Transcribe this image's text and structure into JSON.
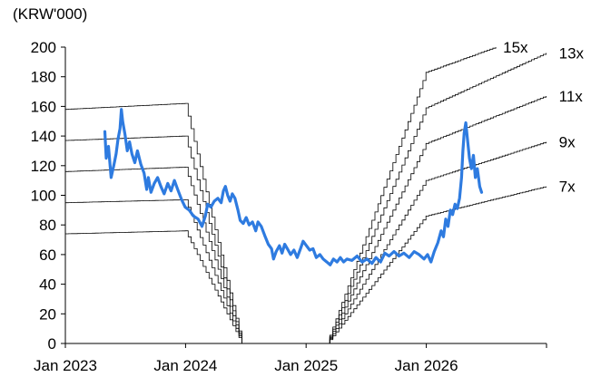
{
  "chart_data": {
    "type": "line",
    "title": "",
    "unit_label": "(KRW'000)",
    "xlabel": "",
    "ylabel": "",
    "ylim": [
      0,
      200
    ],
    "yticks": [
      0,
      20,
      40,
      60,
      80,
      100,
      120,
      140,
      160,
      180,
      200
    ],
    "xlim": [
      "2023-01-01",
      "2027-01-01"
    ],
    "xtick_labels": [
      "Jan 2023",
      "Jan 2024",
      "Jan 2025",
      "Jan 2026"
    ],
    "xtick_dates": [
      "2023-01-01",
      "2024-01-01",
      "2025-01-01",
      "2026-01-01",
      "2027-01-01"
    ],
    "grid": false,
    "price_color": "#2e7be0",
    "band_color": "#000000",
    "series": [
      {
        "kind": "price",
        "points": [
          [
            "2023-05-01",
            143
          ],
          [
            "2023-05-05",
            125
          ],
          [
            "2023-05-12",
            133
          ],
          [
            "2023-05-20",
            112
          ],
          [
            "2023-05-28",
            120
          ],
          [
            "2023-06-04",
            128
          ],
          [
            "2023-06-10",
            138
          ],
          [
            "2023-06-16",
            145
          ],
          [
            "2023-06-20",
            158
          ],
          [
            "2023-06-24",
            150
          ],
          [
            "2023-07-01",
            141
          ],
          [
            "2023-07-08",
            130
          ],
          [
            "2023-07-15",
            136
          ],
          [
            "2023-07-22",
            128
          ],
          [
            "2023-07-31",
            122
          ],
          [
            "2023-08-08",
            130
          ],
          [
            "2023-08-18",
            121
          ],
          [
            "2023-08-28",
            115
          ],
          [
            "2023-09-05",
            104
          ],
          [
            "2023-09-10",
            112
          ],
          [
            "2023-09-18",
            102
          ],
          [
            "2023-09-28",
            108
          ],
          [
            "2023-10-08",
            112
          ],
          [
            "2023-10-18",
            106
          ],
          [
            "2023-10-28",
            101
          ],
          [
            "2023-11-08",
            108
          ],
          [
            "2023-11-18",
            103
          ],
          [
            "2023-11-28",
            110
          ],
          [
            "2023-12-08",
            104
          ],
          [
            "2023-12-20",
            97
          ],
          [
            "2023-12-31",
            92
          ],
          [
            "2024-01-12",
            90
          ],
          [
            "2024-01-25",
            86
          ],
          [
            "2024-02-08",
            84
          ],
          [
            "2024-02-20",
            79
          ],
          [
            "2024-03-01",
            86
          ],
          [
            "2024-03-08",
            94
          ],
          [
            "2024-03-18",
            92
          ],
          [
            "2024-03-28",
            96
          ],
          [
            "2024-04-08",
            98
          ],
          [
            "2024-04-18",
            95
          ],
          [
            "2024-04-25",
            103
          ],
          [
            "2024-05-01",
            106
          ],
          [
            "2024-05-08",
            100
          ],
          [
            "2024-05-15",
            96
          ],
          [
            "2024-05-22",
            101
          ],
          [
            "2024-05-30",
            98
          ],
          [
            "2024-06-08",
            90
          ],
          [
            "2024-06-15",
            83
          ],
          [
            "2024-06-24",
            81
          ],
          [
            "2024-07-03",
            85
          ],
          [
            "2024-07-12",
            80
          ],
          [
            "2024-07-22",
            82
          ],
          [
            "2024-08-01",
            76
          ],
          [
            "2024-08-08",
            82
          ],
          [
            "2024-08-18",
            79
          ],
          [
            "2024-08-28",
            73
          ],
          [
            "2024-09-08",
            67
          ],
          [
            "2024-09-18",
            64
          ],
          [
            "2024-09-24",
            57
          ],
          [
            "2024-10-02",
            62
          ],
          [
            "2024-10-12",
            66
          ],
          [
            "2024-10-20",
            61
          ],
          [
            "2024-10-28",
            67
          ],
          [
            "2024-11-05",
            64
          ],
          [
            "2024-11-15",
            60
          ],
          [
            "2024-11-25",
            63
          ],
          [
            "2024-12-05",
            58
          ],
          [
            "2024-12-15",
            64
          ],
          [
            "2024-12-23",
            69
          ],
          [
            "2025-01-02",
            66
          ],
          [
            "2025-01-12",
            63
          ],
          [
            "2025-01-22",
            64
          ],
          [
            "2025-02-01",
            58
          ],
          [
            "2025-02-12",
            60
          ],
          [
            "2025-02-22",
            57
          ],
          [
            "2025-03-05",
            55
          ],
          [
            "2025-03-15",
            53
          ],
          [
            "2025-03-25",
            57
          ],
          [
            "2025-04-05",
            55
          ],
          [
            "2025-04-15",
            58
          ],
          [
            "2025-04-25",
            55
          ],
          [
            "2025-05-05",
            57
          ],
          [
            "2025-05-20",
            56
          ],
          [
            "2025-06-05",
            59
          ],
          [
            "2025-06-20",
            55
          ],
          [
            "2025-07-05",
            57
          ],
          [
            "2025-07-20",
            54
          ],
          [
            "2025-08-01",
            58
          ],
          [
            "2025-08-15",
            55
          ],
          [
            "2025-08-28",
            61
          ],
          [
            "2025-09-10",
            59
          ],
          [
            "2025-09-25",
            62
          ],
          [
            "2025-10-10",
            59
          ],
          [
            "2025-10-25",
            61
          ],
          [
            "2025-11-10",
            58
          ],
          [
            "2025-11-25",
            62
          ],
          [
            "2025-12-10",
            60
          ],
          [
            "2025-12-25",
            57
          ],
          [
            "2026-01-05",
            60
          ],
          [
            "2026-01-15",
            55
          ],
          [
            "2026-01-25",
            62
          ],
          [
            "2026-02-05",
            68
          ],
          [
            "2026-02-15",
            76
          ],
          [
            "2026-02-22",
            72
          ],
          [
            "2026-03-01",
            84
          ],
          [
            "2026-03-08",
            79
          ],
          [
            "2026-03-15",
            90
          ],
          [
            "2026-03-22",
            87
          ],
          [
            "2026-03-29",
            94
          ],
          [
            "2026-04-05",
            91
          ],
          [
            "2026-04-12",
            98
          ],
          [
            "2026-04-18",
            112
          ],
          [
            "2026-04-22",
            130
          ],
          [
            "2026-04-26",
            142
          ],
          [
            "2026-05-01",
            149
          ],
          [
            "2026-05-06",
            138
          ],
          [
            "2026-05-12",
            125
          ],
          [
            "2026-05-18",
            118
          ],
          [
            "2026-05-24",
            127
          ],
          [
            "2026-05-30",
            112
          ],
          [
            "2026-06-05",
            118
          ],
          [
            "2026-06-12",
            106
          ],
          [
            "2026-06-18",
            102
          ]
        ]
      },
      {
        "name": "15x",
        "points": [
          [
            "2023-01-01",
            158
          ],
          [
            "2023-12-31",
            162
          ],
          [
            "2024-06-20",
            0
          ],
          [
            "2025-03-05",
            0
          ],
          [
            "2025-12-31",
            183
          ],
          [
            "2026-07-31",
            200
          ]
        ]
      },
      {
        "name": "13x",
        "points": [
          [
            "2023-01-01",
            137
          ],
          [
            "2023-12-31",
            140
          ],
          [
            "2024-06-20",
            0
          ],
          [
            "2025-03-05",
            0
          ],
          [
            "2025-12-31",
            159
          ],
          [
            "2026-12-31",
            196
          ]
        ]
      },
      {
        "name": "11x",
        "points": [
          [
            "2023-01-01",
            116
          ],
          [
            "2023-12-31",
            119
          ],
          [
            "2024-06-20",
            0
          ],
          [
            "2025-03-05",
            0
          ],
          [
            "2025-12-31",
            135
          ],
          [
            "2026-12-31",
            167
          ]
        ]
      },
      {
        "name": "9x",
        "points": [
          [
            "2023-01-01",
            95
          ],
          [
            "2023-12-31",
            97
          ],
          [
            "2024-06-20",
            0
          ],
          [
            "2025-03-05",
            0
          ],
          [
            "2025-12-31",
            110
          ],
          [
            "2026-12-31",
            136
          ]
        ]
      },
      {
        "name": "7x",
        "points": [
          [
            "2023-01-01",
            74
          ],
          [
            "2023-12-31",
            76
          ],
          [
            "2024-06-20",
            0
          ],
          [
            "2025-03-05",
            0
          ],
          [
            "2025-12-31",
            86
          ],
          [
            "2026-12-31",
            106
          ]
        ]
      }
    ]
  }
}
